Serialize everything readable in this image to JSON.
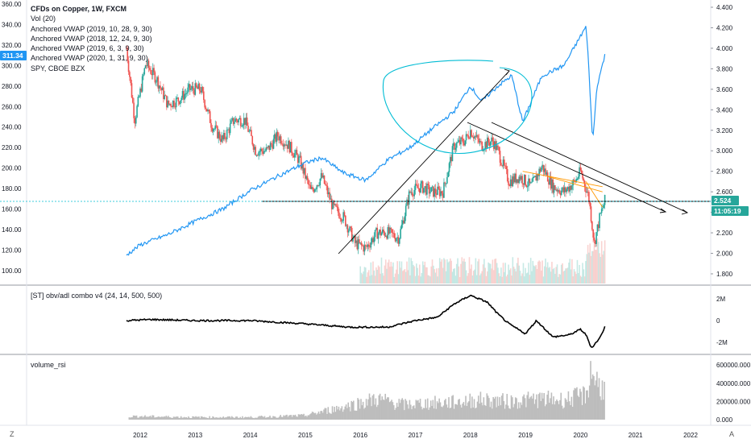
{
  "legend": {
    "title": "CFDs on Copper, 1W, FXCM",
    "lines": [
      "Vol (20)",
      "Anchored VWAP (2019, 10, 28, 9, 30)",
      "Anchored VWAP (2018, 12, 24, 9, 30)",
      "Anchored VWAP (2019, 6, 3, 9, 30)",
      "Anchored VWAP (2020, 1, 31, 9, 30)",
      "SPY, CBOE BZX"
    ]
  },
  "pane2_label": "[ST] obv/adl combo v4 (24, 14, 500, 500)",
  "pane3_label": "volume_rsi",
  "left_axis_ticks": [
    "360.00",
    "340.00",
    "320.00",
    "300.00",
    "280.00",
    "260.00",
    "240.00",
    "220.00",
    "200.00",
    "180.00",
    "160.00",
    "140.00",
    "120.00",
    "100.00"
  ],
  "right_axis_ticks": [
    "4.400",
    "4.200",
    "4.000",
    "3.800",
    "3.600",
    "3.400",
    "3.200",
    "3.000",
    "2.800",
    "2.600",
    "2.400",
    "2.200",
    "2.000",
    "1.800"
  ],
  "obv_ticks": [
    "2M",
    "0",
    "-2M"
  ],
  "vol_ticks": [
    "600000.000",
    "400000.000",
    "200000.000",
    "0.000"
  ],
  "x_ticks": [
    "2012",
    "2013",
    "2014",
    "2015",
    "2016",
    "2017",
    "2018",
    "2019",
    "2020",
    "2021",
    "2022"
  ],
  "badges": {
    "spy_price": "311.34",
    "copper_price": "2.524",
    "countdown": "11:05:19"
  },
  "corner_left": "Z",
  "corner_right": "A",
  "colors": {
    "up": "#26a69a",
    "down": "#ef5350",
    "spy": "#2196f3",
    "drawing": "#00bcd4",
    "obv": "#000000",
    "volume": "#bdbdbd",
    "spy_badge": "#2196f3",
    "price_badge": "#26a69a"
  },
  "chart_data": [
    {
      "type": "line",
      "series": [
        {
          "name": "CFDs on Copper, 1W, FXCM",
          "x": [
            2011.75,
            2011.9,
            2012.1,
            2012.3,
            2012.5,
            2012.7,
            2012.9,
            2013.1,
            2013.3,
            2013.5,
            2013.7,
            2013.9,
            2014.1,
            2014.3,
            2014.5,
            2014.7,
            2014.9,
            2015.1,
            2015.3,
            2015.5,
            2015.7,
            2015.9,
            2016.1,
            2016.3,
            2016.5,
            2016.7,
            2016.9,
            2017.1,
            2017.3,
            2017.5,
            2017.7,
            2017.9,
            2018.0,
            2018.2,
            2018.4,
            2018.5,
            2018.7,
            2018.9,
            2019.1,
            2019.3,
            2019.5,
            2019.7,
            2019.9,
            2020.0,
            2020.15,
            2020.25,
            2020.35,
            2020.45
          ],
          "values": [
            4.0,
            3.3,
            3.85,
            3.7,
            3.45,
            3.5,
            3.6,
            3.6,
            3.25,
            3.1,
            3.3,
            3.3,
            3.0,
            3.0,
            3.15,
            3.05,
            2.9,
            2.6,
            2.75,
            2.45,
            2.35,
            2.1,
            2.05,
            2.2,
            2.2,
            2.15,
            2.6,
            2.65,
            2.6,
            2.6,
            3.05,
            3.1,
            3.2,
            3.05,
            3.1,
            3.0,
            2.7,
            2.75,
            2.65,
            2.85,
            2.65,
            2.6,
            2.7,
            2.8,
            2.55,
            2.1,
            2.35,
            2.524
          ]
        },
        {
          "name": "SPY, CBOE BZX",
          "x": [
            2011.75,
            2012.0,
            2012.5,
            2013.0,
            2013.5,
            2014.0,
            2014.5,
            2015.0,
            2015.3,
            2015.7,
            2016.1,
            2016.5,
            2016.9,
            2017.3,
            2017.7,
            2018.0,
            2018.2,
            2018.5,
            2018.75,
            2018.95,
            2019.3,
            2019.7,
            2020.1,
            2020.15,
            2020.22,
            2020.3,
            2020.45
          ],
          "values": [
            115,
            125,
            135,
            148,
            160,
            178,
            192,
            205,
            210,
            195,
            188,
            208,
            220,
            238,
            255,
            280,
            265,
            280,
            290,
            245,
            290,
            300,
            338,
            300,
            225,
            280,
            311.34
          ]
        }
      ],
      "ylim": [
        1.75,
        4.45
      ],
      "ylim_spy": [
        95,
        365
      ]
    },
    {
      "type": "line",
      "series": [
        {
          "name": "[ST] obv/adl combo v4 (24, 14, 500, 500)",
          "x": [
            2011.75,
            2012.2,
            2013.0,
            2014.0,
            2015.0,
            2015.8,
            2016.5,
            2017.0,
            2017.4,
            2017.7,
            2018.0,
            2018.3,
            2018.5,
            2018.7,
            2019.0,
            2019.2,
            2019.5,
            2019.8,
            2020.0,
            2020.1,
            2020.2,
            2020.35,
            2020.45
          ],
          "values": [
            0,
            0.1,
            0,
            0,
            -0.3,
            -0.6,
            -0.6,
            0,
            0.3,
            1.5,
            2.3,
            1.7,
            0.6,
            -0.3,
            -1.2,
            0,
            -1.5,
            -1.3,
            -0.8,
            -1.3,
            -2.5,
            -1.6,
            -0.5
          ]
        }
      ],
      "ylim": [
        -3,
        3
      ]
    },
    {
      "type": "bar",
      "series": [
        {
          "name": "volume_rsi",
          "x": [
            2012,
            2013,
            2014,
            2015,
            2016.3,
            2016.8,
            2017.2,
            2017.7,
            2018.2,
            2018.7,
            2019.2,
            2019.7,
            2020.1,
            2020.2,
            2020.35
          ],
          "values": [
            40000,
            30000,
            30000,
            50000,
            250000,
            180000,
            200000,
            210000,
            240000,
            220000,
            250000,
            240000,
            300000,
            600000,
            400000
          ]
        }
      ],
      "ylim": [
        0,
        640000
      ]
    }
  ]
}
